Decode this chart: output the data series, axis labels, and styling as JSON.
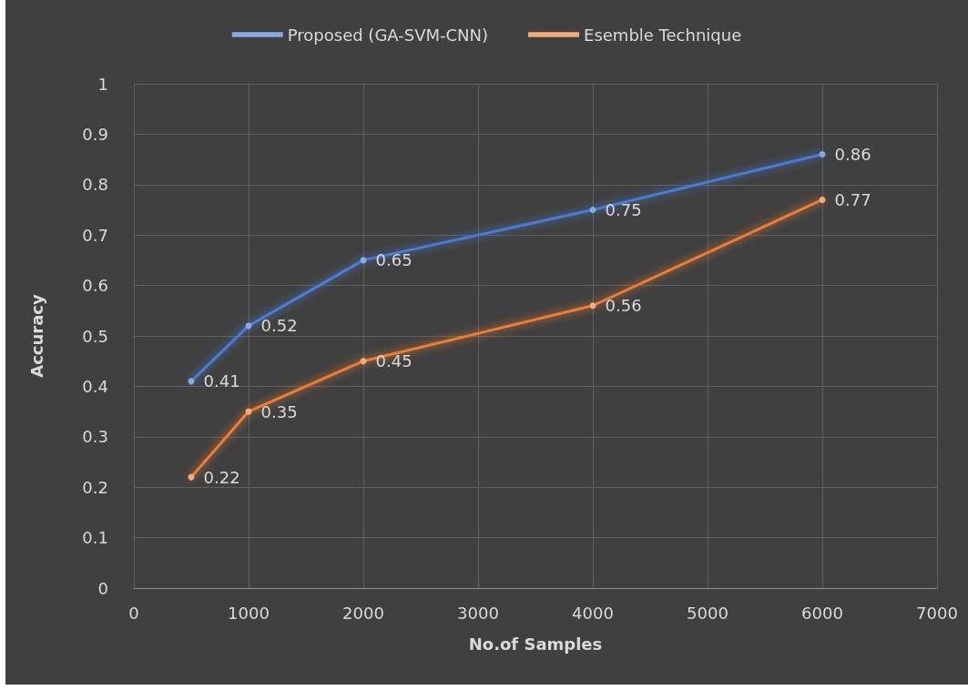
{
  "chart_data": {
    "type": "line",
    "xlabel": "No.of Samples",
    "ylabel": "Accuracy",
    "x": [
      500,
      1000,
      2000,
      4000,
      6000
    ],
    "series": [
      {
        "name": "Proposed (GA-SVM-CNN)",
        "color": "#4a7bd4",
        "values": [
          0.41,
          0.52,
          0.65,
          0.75,
          0.86
        ]
      },
      {
        "name": "Esemble Technique",
        "color": "#ed7d31",
        "values": [
          0.22,
          0.35,
          0.45,
          0.56,
          0.77
        ]
      }
    ],
    "xlim": [
      0,
      7000
    ],
    "xticks": [
      0,
      1000,
      2000,
      3000,
      4000,
      5000,
      6000,
      7000
    ],
    "ylim": [
      0,
      1
    ],
    "yticks": [
      0,
      0.1,
      0.2,
      0.3,
      0.4,
      0.5,
      0.6,
      0.7,
      0.8,
      0.9,
      1
    ],
    "grid": true,
    "legend": "top",
    "marker": "circle",
    "line_style": "solid",
    "data_labels": true
  }
}
